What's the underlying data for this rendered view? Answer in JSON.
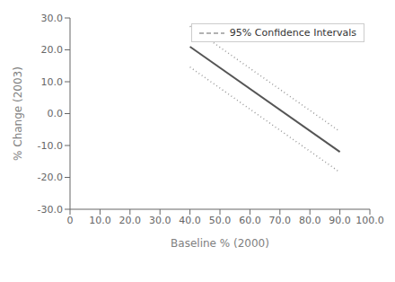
{
  "chart_data": {
    "type": "line",
    "x": [
      40,
      90
    ],
    "series": [
      {
        "values": [
          21.0,
          -12.0
        ],
        "color": "#555555",
        "line_style": "solid"
      },
      {
        "name": "95% Confidence Intervals",
        "values": [
          27.4,
          -5.6
        ],
        "color": "#999999",
        "line_style": "dotted"
      },
      {
        "name": "95% Confidence Intervals",
        "values": [
          14.6,
          -18.4
        ],
        "color": "#999999",
        "line_style": "dotted"
      }
    ],
    "xlabel": "Baseline % (2000)",
    "ylabel": "% Change (2003)",
    "xlim": [
      0,
      100
    ],
    "ylim": [
      -30,
      30
    ],
    "xticks": [
      0,
      {
        "value": 10,
        "label": "10.0"
      },
      {
        "value": 20,
        "label": "20.0"
      },
      {
        "value": 30,
        "label": "30.0"
      },
      {
        "value": 40,
        "label": "40.0"
      },
      {
        "value": 50,
        "label": "50.0"
      },
      {
        "value": 60,
        "label": "60.0"
      },
      {
        "value": 70,
        "label": "70.0"
      },
      {
        "value": 80,
        "label": "80.0"
      },
      {
        "value": 90,
        "label": "90.0"
      },
      {
        "value": 100,
        "label": "100.0"
      }
    ],
    "yticks": [
      {
        "value": -30,
        "label": "-30.0"
      },
      {
        "value": -20,
        "label": "-20.0"
      },
      {
        "value": -10,
        "label": "-10.0"
      },
      {
        "value": 0,
        "label": "0.0"
      },
      {
        "value": 10,
        "label": "10.0"
      },
      {
        "value": 20,
        "label": "20.0"
      },
      {
        "value": 30,
        "label": "30.0"
      }
    ],
    "grid": false,
    "legend": "upper right"
  }
}
